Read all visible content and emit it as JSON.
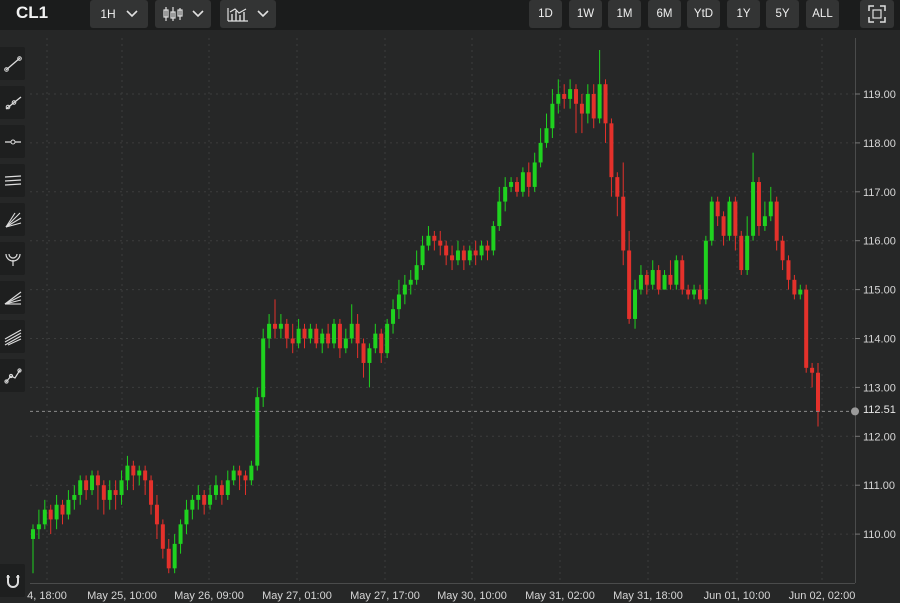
{
  "header": {
    "symbol": "CL1",
    "interval": "1H",
    "ranges": [
      "1D",
      "1W",
      "1M",
      "6M",
      "YtD",
      "1Y",
      "5Y",
      "ALL"
    ],
    "icons": [
      "candlestick-type-icon",
      "indicators-icon",
      "fullscreen-icon"
    ]
  },
  "toolbar": {
    "tools": [
      "trend-line-icon",
      "ray-line-icon",
      "horizontal-line-icon",
      "parallel-channel-icon",
      "fan-lines-icon",
      "arc-icon",
      "gann-lines-icon",
      "pitchfork-icon",
      "path-line-icon",
      "magnet-icon"
    ]
  },
  "colors": {
    "up": "#1fd21f",
    "down": "#e4312b",
    "background": "#262727",
    "grid": "#3c3d3d"
  },
  "current_price": "112.51",
  "chart_data": {
    "type": "candlestick",
    "y_ticks": [
      110,
      111,
      112,
      113,
      114,
      115,
      116,
      117,
      118,
      119
    ],
    "y_tick_labels": [
      "110.00",
      "111.00",
      "112.00",
      "113.00",
      "114.00",
      "115.00",
      "116.00",
      "117.00",
      "118.00",
      "119.00"
    ],
    "ylim": [
      109.1,
      119.95
    ],
    "x_labels": [
      "4, 18:00",
      "May 25, 10:00",
      "May 26, 09:00",
      "May 27, 01:00",
      "May 27, 17:00",
      "May 30, 10:00",
      "May 31, 02:00",
      "May 31, 18:00",
      "Jun 01, 10:00",
      "Jun 02, 02:00"
    ],
    "last_price": 112.51,
    "candles": [
      [
        109.9,
        110.1,
        109.2,
        110.2
      ],
      [
        110.1,
        110.2,
        109.9,
        110.5
      ],
      [
        110.2,
        110.5,
        110.1,
        110.7
      ],
      [
        110.5,
        110.3,
        110.0,
        110.6
      ],
      [
        110.3,
        110.6,
        110.1,
        110.8
      ],
      [
        110.6,
        110.4,
        110.2,
        110.7
      ],
      [
        110.4,
        110.7,
        110.3,
        110.9
      ],
      [
        110.7,
        110.8,
        110.5,
        111.0
      ],
      [
        110.8,
        111.1,
        110.6,
        111.2
      ],
      [
        111.1,
        110.9,
        110.7,
        111.2
      ],
      [
        110.9,
        111.2,
        110.8,
        111.3
      ],
      [
        111.2,
        111.0,
        110.5,
        111.3
      ],
      [
        111.0,
        110.7,
        110.4,
        111.1
      ],
      [
        110.7,
        110.9,
        110.5,
        111.1
      ],
      [
        110.9,
        110.8,
        110.5,
        111.1
      ],
      [
        110.8,
        111.1,
        110.6,
        111.3
      ],
      [
        111.1,
        111.4,
        110.9,
        111.6
      ],
      [
        111.4,
        111.2,
        110.9,
        111.5
      ],
      [
        111.2,
        111.3,
        111.0,
        111.4
      ],
      [
        111.3,
        111.1,
        110.8,
        111.4
      ],
      [
        111.1,
        110.6,
        110.4,
        111.2
      ],
      [
        110.6,
        110.2,
        109.9,
        110.8
      ],
      [
        110.2,
        109.7,
        109.5,
        110.3
      ],
      [
        109.7,
        109.3,
        109.2,
        109.9
      ],
      [
        109.3,
        109.8,
        109.2,
        110.0
      ],
      [
        109.8,
        110.2,
        109.6,
        110.3
      ],
      [
        110.2,
        110.5,
        110.0,
        110.7
      ],
      [
        110.5,
        110.7,
        110.3,
        110.8
      ],
      [
        110.7,
        110.8,
        110.5,
        111.0
      ],
      [
        110.8,
        110.6,
        110.4,
        110.9
      ],
      [
        110.6,
        110.8,
        110.5,
        111.0
      ],
      [
        110.8,
        111.0,
        110.7,
        111.2
      ],
      [
        111.0,
        110.8,
        110.6,
        111.1
      ],
      [
        110.8,
        111.1,
        110.7,
        111.3
      ],
      [
        111.1,
        111.3,
        111.0,
        111.4
      ],
      [
        111.3,
        111.2,
        110.9,
        111.4
      ],
      [
        111.2,
        111.1,
        110.8,
        111.3
      ],
      [
        111.1,
        111.4,
        111.0,
        111.5
      ],
      [
        111.4,
        112.8,
        111.3,
        113.0
      ],
      [
        112.8,
        114.0,
        112.6,
        114.2
      ],
      [
        114.0,
        114.3,
        113.8,
        114.5
      ],
      [
        114.3,
        114.2,
        114.0,
        114.8
      ],
      [
        114.2,
        114.3,
        114.0,
        114.5
      ],
      [
        114.3,
        114.0,
        113.8,
        114.4
      ],
      [
        114.0,
        113.9,
        113.7,
        114.3
      ],
      [
        113.9,
        114.2,
        113.8,
        114.4
      ],
      [
        114.2,
        114.0,
        113.8,
        114.3
      ],
      [
        114.0,
        114.2,
        113.9,
        114.3
      ],
      [
        114.2,
        113.9,
        113.8,
        114.3
      ],
      [
        113.9,
        114.1,
        113.7,
        114.2
      ],
      [
        114.1,
        113.9,
        113.8,
        114.3
      ],
      [
        113.9,
        114.3,
        113.8,
        114.4
      ],
      [
        114.3,
        113.8,
        113.6,
        114.4
      ],
      [
        113.8,
        114.0,
        113.7,
        114.2
      ],
      [
        114.0,
        114.3,
        113.9,
        114.7
      ],
      [
        114.3,
        113.9,
        113.6,
        114.5
      ],
      [
        113.9,
        113.5,
        113.2,
        114.0
      ],
      [
        113.5,
        113.8,
        113.0,
        113.9
      ],
      [
        113.8,
        114.1,
        113.7,
        114.3
      ],
      [
        114.1,
        113.7,
        113.5,
        114.2
      ],
      [
        113.7,
        114.3,
        113.6,
        114.4
      ],
      [
        114.3,
        114.6,
        114.1,
        114.8
      ],
      [
        114.6,
        114.9,
        114.4,
        115.2
      ],
      [
        114.9,
        115.1,
        114.7,
        115.3
      ],
      [
        115.1,
        115.2,
        114.9,
        115.4
      ],
      [
        115.2,
        115.5,
        115.1,
        115.8
      ],
      [
        115.5,
        115.9,
        115.4,
        116.1
      ],
      [
        115.9,
        116.1,
        115.8,
        116.3
      ],
      [
        116.1,
        116.0,
        115.8,
        116.2
      ],
      [
        116.0,
        115.9,
        115.7,
        116.2
      ],
      [
        115.9,
        115.7,
        115.5,
        116.0
      ],
      [
        115.7,
        115.6,
        115.4,
        115.9
      ],
      [
        115.6,
        115.8,
        115.5,
        116.0
      ],
      [
        115.8,
        115.6,
        115.4,
        115.9
      ],
      [
        115.6,
        115.8,
        115.5,
        115.9
      ],
      [
        115.8,
        115.7,
        115.5,
        116.0
      ],
      [
        115.7,
        115.9,
        115.6,
        116.0
      ],
      [
        115.9,
        115.8,
        115.6,
        116.0
      ],
      [
        115.8,
        116.3,
        115.7,
        116.4
      ],
      [
        116.3,
        116.8,
        116.2,
        117.1
      ],
      [
        116.8,
        117.1,
        116.6,
        117.3
      ],
      [
        117.1,
        117.2,
        117.0,
        117.3
      ],
      [
        117.2,
        117.0,
        116.9,
        117.3
      ],
      [
        117.0,
        117.4,
        116.9,
        117.5
      ],
      [
        117.4,
        117.1,
        116.9,
        117.6
      ],
      [
        117.1,
        117.6,
        117.0,
        117.8
      ],
      [
        117.6,
        118.0,
        117.5,
        118.3
      ],
      [
        118.0,
        118.3,
        117.9,
        118.6
      ],
      [
        118.3,
        118.8,
        118.1,
        119.1
      ],
      [
        118.8,
        119.0,
        118.6,
        119.3
      ],
      [
        119.0,
        118.9,
        118.7,
        119.2
      ],
      [
        118.9,
        119.1,
        118.7,
        119.3
      ],
      [
        119.1,
        118.8,
        118.2,
        119.2
      ],
      [
        118.8,
        118.6,
        118.2,
        119.0
      ],
      [
        118.6,
        119.0,
        118.4,
        119.2
      ],
      [
        119.0,
        118.5,
        118.3,
        119.2
      ],
      [
        118.5,
        119.2,
        118.4,
        119.9
      ],
      [
        119.2,
        118.4,
        118.0,
        119.3
      ],
      [
        118.4,
        117.3,
        116.9,
        118.5
      ],
      [
        117.3,
        116.9,
        116.5,
        117.4
      ],
      [
        116.9,
        115.8,
        115.5,
        117.6
      ],
      [
        115.8,
        114.4,
        114.3,
        116.2
      ],
      [
        114.4,
        115.0,
        114.2,
        115.2
      ],
      [
        115.0,
        115.3,
        114.9,
        115.5
      ],
      [
        115.3,
        115.1,
        114.9,
        115.4
      ],
      [
        115.1,
        115.4,
        115.0,
        115.6
      ],
      [
        115.4,
        115.0,
        114.9,
        115.5
      ],
      [
        115.0,
        115.3,
        115.0,
        115.4
      ],
      [
        115.3,
        115.1,
        115.0,
        115.6
      ],
      [
        115.1,
        115.6,
        115.0,
        115.7
      ],
      [
        115.6,
        115.0,
        114.9,
        115.7
      ],
      [
        115.0,
        114.9,
        114.8,
        115.1
      ],
      [
        114.9,
        115.0,
        114.8,
        115.1
      ],
      [
        115.0,
        114.8,
        114.7,
        115.1
      ],
      [
        114.8,
        116.0,
        114.7,
        116.1
      ],
      [
        116.0,
        116.8,
        115.9,
        116.9
      ],
      [
        116.8,
        116.5,
        116.3,
        116.9
      ],
      [
        116.5,
        116.1,
        115.9,
        116.6
      ],
      [
        116.1,
        116.8,
        116.0,
        116.9
      ],
      [
        116.8,
        116.1,
        115.8,
        116.9
      ],
      [
        116.1,
        115.4,
        115.3,
        116.2
      ],
      [
        115.4,
        116.1,
        115.3,
        116.5
      ],
      [
        116.1,
        117.2,
        116.0,
        117.8
      ],
      [
        117.2,
        116.3,
        116.1,
        117.3
      ],
      [
        116.3,
        116.5,
        116.2,
        116.8
      ],
      [
        116.5,
        116.8,
        116.4,
        117.1
      ],
      [
        116.8,
        116.0,
        115.8,
        116.9
      ],
      [
        116.0,
        115.6,
        115.4,
        116.1
      ],
      [
        115.6,
        115.2,
        115.0,
        115.7
      ],
      [
        115.2,
        114.9,
        114.8,
        115.3
      ],
      [
        114.9,
        115.0,
        114.8,
        115.1
      ],
      [
        115.0,
        113.4,
        113.3,
        115.1
      ],
      [
        113.4,
        113.3,
        113.0,
        113.5
      ],
      [
        113.3,
        112.5,
        112.2,
        113.5
      ]
    ]
  }
}
